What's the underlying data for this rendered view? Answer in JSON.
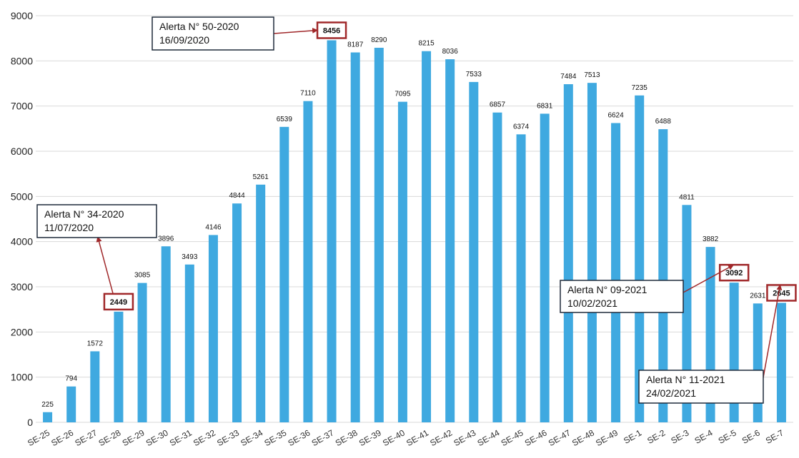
{
  "chart_data": {
    "type": "bar",
    "title": "",
    "xlabel": "",
    "ylabel": "",
    "ylim": [
      0,
      9000
    ],
    "yticks": [
      0,
      1000,
      2000,
      3000,
      4000,
      5000,
      6000,
      7000,
      8000,
      9000
    ],
    "grid": true,
    "bar_color": "#3fa9e0",
    "annotation_color": "#a0282a",
    "categories": [
      "SE-25",
      "SE-26",
      "SE-27",
      "SE-28",
      "SE-29",
      "SE-30",
      "SE-31",
      "SE-32",
      "SE-33",
      "SE-34",
      "SE-35",
      "SE-36",
      "SE-37",
      "SE-38",
      "SE-39",
      "SE-40",
      "SE-41",
      "SE-42",
      "SE-43",
      "SE-44",
      "SE-45",
      "SE-46",
      "SE-47",
      "SE-48",
      "SE-49",
      "SE-1",
      "SE-2",
      "SE-3",
      "SE-4",
      "SE-5",
      "SE-6",
      "SE-7"
    ],
    "values": [
      225,
      794,
      1572,
      2449,
      3085,
      3896,
      3493,
      4146,
      4844,
      5261,
      6539,
      7110,
      8456,
      8187,
      8290,
      7095,
      8215,
      8036,
      7533,
      6857,
      6374,
      6831,
      7484,
      7513,
      6624,
      7235,
      6488,
      4811,
      3882,
      3092,
      2631,
      2645
    ],
    "annotations": [
      {
        "line1": "Alerta N° 34-2020",
        "line2": "11/07/2020",
        "category": "SE-28",
        "value": 2449
      },
      {
        "line1": "Alerta N° 50-2020",
        "line2": "16/09/2020",
        "category": "SE-37",
        "value": 8456
      },
      {
        "line1": "Alerta N° 09-2021",
        "line2": "10/02/2021",
        "category": "SE-5",
        "value": 3092
      },
      {
        "line1": "Alerta N° 11-2021",
        "line2": "24/02/2021",
        "category": "SE-7",
        "value": 2645
      }
    ]
  }
}
